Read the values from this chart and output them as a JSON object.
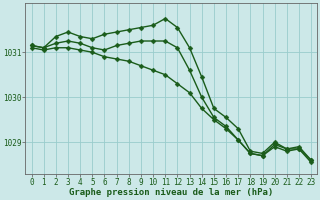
{
  "xlabel": "Graphe pression niveau de la mer (hPa)",
  "background_color": "#cce8e8",
  "grid_color": "#99cccc",
  "line_color": "#1a5c1a",
  "xlim_min": -0.5,
  "xlim_max": 23.5,
  "ylim_min": 1028.3,
  "ylim_max": 1032.1,
  "yticks": [
    1029,
    1030,
    1031
  ],
  "xticks": [
    0,
    1,
    2,
    3,
    4,
    5,
    6,
    7,
    8,
    9,
    10,
    11,
    12,
    13,
    14,
    15,
    16,
    17,
    18,
    19,
    20,
    21,
    22,
    23
  ],
  "lines": [
    {
      "x": [
        0,
        1,
        2,
        3,
        4,
        5,
        6,
        7,
        8,
        9,
        10,
        11,
        12,
        13,
        14,
        15,
        16,
        17,
        18,
        19,
        20,
        21,
        22,
        23
      ],
      "y": [
        1031.15,
        1031.1,
        1031.35,
        1031.45,
        1031.35,
        1031.3,
        1031.4,
        1031.45,
        1031.5,
        1031.55,
        1031.6,
        1031.75,
        1031.55,
        1031.1,
        1030.45,
        1029.75,
        1029.55,
        1029.3,
        1028.8,
        1028.75,
        1029.0,
        1028.85,
        1028.85,
        1028.6
      ]
    },
    {
      "x": [
        0,
        1,
        2,
        3,
        4,
        5,
        6,
        7,
        8,
        9,
        10,
        11,
        12,
        13,
        14,
        15,
        16,
        17,
        18,
        19,
        20,
        21,
        22,
        23
      ],
      "y": [
        1031.15,
        1031.1,
        1031.2,
        1031.25,
        1031.2,
        1031.1,
        1031.05,
        1031.15,
        1031.2,
        1031.25,
        1031.25,
        1031.25,
        1031.1,
        1030.6,
        1030.0,
        1029.55,
        1029.35,
        1029.05,
        1028.75,
        1028.7,
        1028.95,
        1028.85,
        1028.9,
        1028.6
      ]
    },
    {
      "x": [
        0,
        1,
        2,
        3,
        4,
        5,
        6,
        7,
        8,
        9,
        10,
        11,
        12,
        13,
        14,
        15,
        16,
        17,
        18,
        19,
        20,
        21,
        22,
        23
      ],
      "y": [
        1031.1,
        1031.05,
        1031.1,
        1031.1,
        1031.05,
        1031.0,
        1030.9,
        1030.85,
        1030.8,
        1030.7,
        1030.6,
        1030.5,
        1030.3,
        1030.1,
        1029.75,
        1029.5,
        1029.3,
        1029.05,
        1028.75,
        1028.7,
        1028.9,
        1028.8,
        1028.85,
        1028.55
      ]
    }
  ],
  "marker_size": 2.5,
  "linewidth": 1.0,
  "tick_fontsize": 5.5,
  "label_fontsize": 6.5
}
